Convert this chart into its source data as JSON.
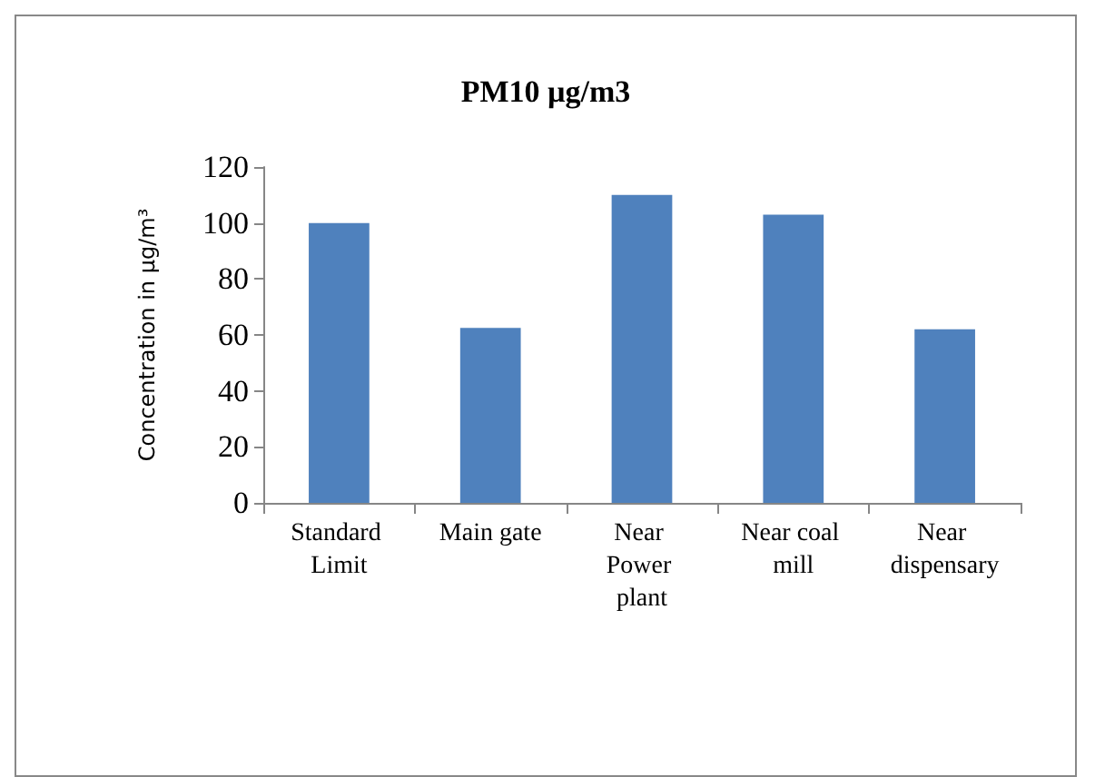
{
  "chart_data": {
    "type": "bar",
    "title": "PM10 µg/m3",
    "ylabel": "Concentration in µg/m³",
    "categories": [
      "Standard Limit",
      "Main gate",
      "Near Power plant",
      "Near coal mill",
      "Near dispensary"
    ],
    "values": [
      100,
      62.5,
      110,
      103,
      62
    ],
    "color": "#4f81bd",
    "ylim": [
      0,
      120
    ],
    "yticks": [
      0,
      20,
      40,
      60,
      80,
      100,
      120
    ]
  }
}
